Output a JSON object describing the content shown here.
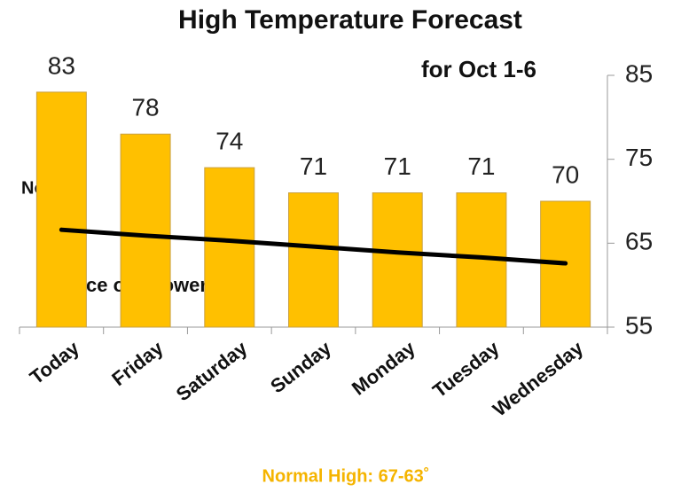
{
  "chart_data": {
    "type": "bar",
    "title": "High Temperature Forecast",
    "subtitle": "for Oct 1-6",
    "categories": [
      "Today",
      "Friday",
      "Saturday",
      "Sunday",
      "Monday",
      "Tuesday",
      "Wednesday"
    ],
    "series": [
      {
        "type": "bar",
        "color": "#ffc000",
        "values": [
          83,
          78,
          74,
          71,
          71,
          71,
          70
        ]
      },
      {
        "type": "line",
        "color": "#000000",
        "values": [
          66.6,
          65.9,
          65.3,
          64.6,
          63.9,
          63.3,
          62.6
        ]
      }
    ],
    "ylim": [
      55,
      85
    ],
    "yticks": [
      55,
      65,
      75,
      85
    ],
    "y_axis_side": "right",
    "annotations": [
      "Normal",
      "Chance of Showers"
    ],
    "footer": "Normal High: 67-63˚"
  }
}
